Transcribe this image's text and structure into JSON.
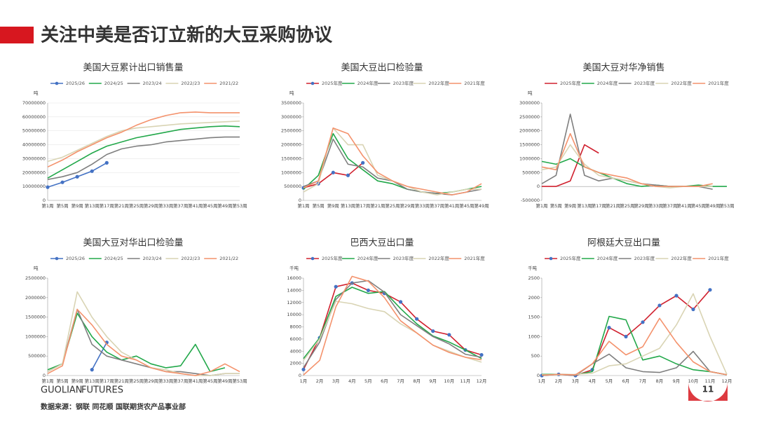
{
  "header": {
    "title": "关注中美是否订立新的大豆采购协议"
  },
  "footer": {
    "brand": "GUOLIAN",
    "brand_suffix": "FUTURES",
    "source": "数据来源：钢联  同花顺  国联期货农产品事业部",
    "page": "11"
  },
  "chart_data": [
    {
      "type": "line",
      "title": "美国大豆累计出口销售量",
      "y_unit": "吨",
      "categories": [
        "第1周",
        "第5周",
        "第9周",
        "第13周",
        "第17周",
        "第21周",
        "第25周",
        "第29周",
        "第33周",
        "第37周",
        "第41周",
        "第45周",
        "第49周",
        "第53周"
      ],
      "ylim": [
        0,
        70000000
      ],
      "yticks": [
        0,
        10000000,
        20000000,
        30000000,
        40000000,
        50000000,
        60000000,
        70000000
      ],
      "grid": true,
      "series": [
        {
          "name": "2025/26",
          "color": "#4472c4",
          "markers": true,
          "marker_color": "#4472c4",
          "values": [
            9500000,
            13000000,
            17000000,
            21000000,
            27000000,
            null,
            null,
            null,
            null,
            null,
            null,
            null,
            null,
            null
          ]
        },
        {
          "name": "2024/25",
          "color": "#22a84a",
          "values": [
            16000000,
            22000000,
            28000000,
            34000000,
            39000000,
            42000000,
            45000000,
            47000000,
            49000000,
            51000000,
            52000000,
            53000000,
            53500000,
            53000000
          ]
        },
        {
          "name": "2023/24",
          "color": "#7f7f7f",
          "values": [
            15000000,
            17000000,
            20000000,
            26000000,
            33000000,
            37000000,
            39000000,
            40000000,
            42000000,
            43000000,
            44000000,
            45000000,
            45500000,
            45500000
          ]
        },
        {
          "name": "2022/23",
          "color": "#d9d4b4",
          "values": [
            28000000,
            31000000,
            36000000,
            41000000,
            46000000,
            50000000,
            52000000,
            53000000,
            54000000,
            55000000,
            55500000,
            56000000,
            56500000,
            57000000
          ]
        },
        {
          "name": "2021/22",
          "color": "#f4926c",
          "values": [
            24000000,
            29000000,
            35000000,
            40000000,
            45000000,
            49000000,
            54000000,
            58000000,
            61000000,
            63000000,
            63500000,
            63000000,
            63000000,
            63000000
          ]
        }
      ]
    },
    {
      "type": "line",
      "title": "美国大豆出口检验量",
      "y_unit": "吨",
      "categories": [
        "第1周",
        "第5周",
        "第9周",
        "第13周",
        "第17周",
        "第21周",
        "第25周",
        "第29周",
        "第33周",
        "第37周",
        "第41周",
        "第45周",
        "第49周"
      ],
      "ylim": [
        0,
        3500000
      ],
      "yticks": [
        0,
        500000,
        1000000,
        1500000,
        2000000,
        2500000,
        3000000,
        3500000
      ],
      "grid": false,
      "series": [
        {
          "name": "2025年度",
          "color": "#d0202e",
          "markers": true,
          "marker_color": "#4472c4",
          "values": [
            450000,
            600000,
            1000000,
            900000,
            1350000,
            null,
            null,
            null,
            null,
            null,
            null,
            null,
            null
          ]
        },
        {
          "name": "2024年度",
          "color": "#22a84a",
          "values": [
            400000,
            900000,
            2400000,
            1500000,
            1100000,
            700000,
            600000,
            400000,
            300000,
            250000,
            300000,
            400000,
            500000
          ]
        },
        {
          "name": "2023年度",
          "color": "#7f7f7f",
          "values": [
            500000,
            700000,
            2200000,
            1300000,
            1200000,
            800000,
            700000,
            400000,
            300000,
            250000,
            200000,
            300000,
            400000
          ]
        },
        {
          "name": "2022年度",
          "color": "#d9d4b4",
          "values": [
            300000,
            600000,
            2600000,
            2000000,
            2000000,
            900000,
            700000,
            500000,
            300000,
            200000,
            300000,
            400000,
            400000
          ]
        },
        {
          "name": "2021年度",
          "color": "#f4926c",
          "values": [
            450000,
            700000,
            2600000,
            2400000,
            1600000,
            1000000,
            700000,
            500000,
            400000,
            300000,
            200000,
            300000,
            600000
          ]
        }
      ]
    },
    {
      "type": "line",
      "title": "美国大豆对华净销售",
      "y_unit": "吨",
      "categories": [
        "第1周",
        "第5周",
        "第9周",
        "第13周",
        "第17周",
        "第21周",
        "第25周",
        "第29周",
        "第33周",
        "第37周",
        "第41周",
        "第45周",
        "第49周",
        "第53周"
      ],
      "ylim": [
        -500000,
        3000000
      ],
      "yticks": [
        -500000,
        0,
        500000,
        1000000,
        1500000,
        2000000,
        2500000,
        3000000
      ],
      "grid": false,
      "series": [
        {
          "name": "2025年度",
          "color": "#d0202e",
          "values": [
            0,
            0,
            200000,
            1500000,
            1200000,
            null,
            null,
            null,
            null,
            null,
            null,
            null,
            null,
            null
          ]
        },
        {
          "name": "2024年度",
          "color": "#22a84a",
          "values": [
            900000,
            800000,
            1000000,
            700000,
            500000,
            300000,
            100000,
            0,
            50000,
            0,
            0,
            50000,
            0,
            0
          ]
        },
        {
          "name": "2023年度",
          "color": "#7f7f7f",
          "values": [
            100000,
            400000,
            2600000,
            400000,
            200000,
            300000,
            200000,
            100000,
            50000,
            0,
            0,
            0,
            -100000,
            null
          ]
        },
        {
          "name": "2022年度",
          "color": "#d9d4b4",
          "values": [
            600000,
            700000,
            1500000,
            800000,
            400000,
            300000,
            200000,
            100000,
            0,
            -50000,
            0,
            0,
            0,
            null
          ]
        },
        {
          "name": "2021年度",
          "color": "#f4926c",
          "values": [
            700000,
            600000,
            1900000,
            700000,
            500000,
            400000,
            300000,
            100000,
            0,
            0,
            0,
            0,
            100000,
            null
          ]
        }
      ]
    },
    {
      "type": "line",
      "title": "美国大豆对华出口检验量",
      "y_unit": "吨",
      "categories": [
        "第1周",
        "第5周",
        "第9周",
        "第13周",
        "第17周",
        "第21周",
        "第25周",
        "第29周",
        "第33周",
        "第37周",
        "第41周",
        "第45周",
        "第49周",
        "第53周"
      ],
      "ylim": [
        0,
        2500000
      ],
      "yticks": [
        0,
        500000,
        1000000,
        1500000,
        2000000,
        2500000
      ],
      "grid": false,
      "series": [
        {
          "name": "2025/26",
          "color": "#4472c4",
          "markers": true,
          "marker_color": "#4472c4",
          "values": [
            null,
            null,
            null,
            150000,
            850000,
            null,
            null,
            null,
            null,
            null,
            null,
            null,
            null,
            null
          ]
        },
        {
          "name": "2024/25",
          "color": "#22a84a",
          "values": [
            150000,
            300000,
            1600000,
            1000000,
            600000,
            400000,
            500000,
            300000,
            200000,
            250000,
            800000,
            100000,
            200000,
            null
          ]
        },
        {
          "name": "2023/24",
          "color": "#7f7f7f",
          "values": [
            100000,
            300000,
            1700000,
            800000,
            500000,
            400000,
            300000,
            200000,
            100000,
            100000,
            50000,
            0,
            50000,
            50000
          ]
        },
        {
          "name": "2022/23",
          "color": "#d9d4b4",
          "values": [
            100000,
            300000,
            2150000,
            1500000,
            1000000,
            600000,
            400000,
            200000,
            150000,
            50000,
            0,
            0,
            50000,
            50000
          ]
        },
        {
          "name": "2021/22",
          "color": "#f4926c",
          "values": [
            50000,
            250000,
            1700000,
            1300000,
            800000,
            500000,
            400000,
            200000,
            100000,
            50000,
            0,
            100000,
            300000,
            100000
          ]
        }
      ]
    },
    {
      "type": "line",
      "title": "巴西大豆出口量",
      "y_unit": "千吨",
      "categories": [
        "1月",
        "2月",
        "3月",
        "4月",
        "5月",
        "6月",
        "7月",
        "8月",
        "9月",
        "10月",
        "11月",
        "12月"
      ],
      "ylim": [
        0,
        16000
      ],
      "yticks": [
        0,
        2000,
        4000,
        6000,
        8000,
        10000,
        12000,
        14000,
        16000
      ],
      "grid": false,
      "series": [
        {
          "name": "2025年度",
          "color": "#d0202e",
          "markers": true,
          "marker_color": "#4472c4",
          "values": [
            1000,
            6200,
            14600,
            15200,
            14000,
            13500,
            12100,
            9300,
            7300,
            6700,
            4200,
            3400
          ]
        },
        {
          "name": "2024年度",
          "color": "#22a84a",
          "values": [
            2800,
            6200,
            13000,
            14500,
            13500,
            13800,
            11000,
            8500,
            6500,
            5500,
            4200,
            2800
          ]
        },
        {
          "name": "2023年度",
          "color": "#7f7f7f",
          "values": [
            1300,
            5500,
            12500,
            15200,
            15600,
            13700,
            10000,
            8200,
            6400,
            5200,
            3500,
            3000
          ]
        },
        {
          "name": "2022年度",
          "color": "#d9d4b4",
          "values": [
            2500,
            6000,
            12200,
            11800,
            11000,
            10500,
            8500,
            7000,
            5000,
            4000,
            3000,
            2200
          ]
        },
        {
          "name": "2021年度",
          "color": "#f4926c",
          "values": [
            100,
            2500,
            11300,
            16300,
            15500,
            12800,
            9000,
            7000,
            5000,
            3800,
            3000,
            2600
          ]
        }
      ]
    },
    {
      "type": "line",
      "title": "阿根廷大豆出口量",
      "y_unit": "千吨",
      "categories": [
        "1月",
        "2月",
        "3月",
        "4月",
        "5月",
        "6月",
        "7月",
        "8月",
        "9月",
        "10月",
        "11月",
        "12月"
      ],
      "ylim": [
        0,
        2500
      ],
      "yticks": [
        0,
        500,
        1000,
        1500,
        2000,
        2500
      ],
      "grid": false,
      "series": [
        {
          "name": "2025年度",
          "color": "#d0202e",
          "markers": true,
          "marker_color": "#4472c4",
          "values": [
            0,
            30,
            0,
            150,
            1230,
            1000,
            1370,
            1800,
            2050,
            1700,
            2200,
            null
          ]
        },
        {
          "name": "2024年度",
          "color": "#22a84a",
          "values": [
            30,
            30,
            20,
            100,
            1520,
            1430,
            400,
            500,
            300,
            150,
            100,
            20
          ]
        },
        {
          "name": "2023年度",
          "color": "#7f7f7f",
          "values": [
            0,
            30,
            0,
            300,
            550,
            200,
            100,
            80,
            200,
            620,
            100,
            20
          ]
        },
        {
          "name": "2022年度",
          "color": "#d9d4b4",
          "values": [
            20,
            20,
            30,
            60,
            250,
            300,
            500,
            700,
            1300,
            2100,
            1000,
            30
          ]
        },
        {
          "name": "2021年度",
          "color": "#f4926c",
          "values": [
            10,
            30,
            20,
            300,
            880,
            530,
            740,
            1470,
            850,
            350,
            100,
            20
          ]
        }
      ]
    }
  ]
}
